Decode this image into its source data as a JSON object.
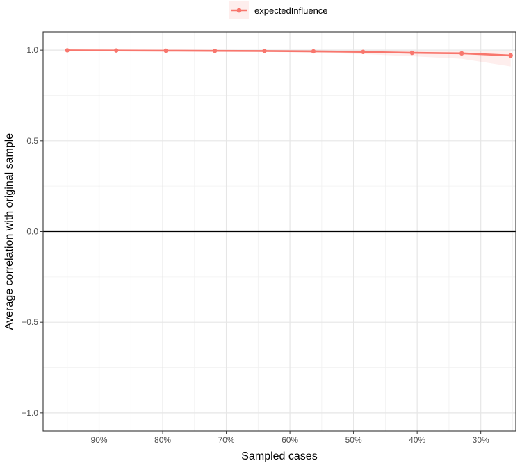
{
  "chart_data": {
    "type": "line",
    "xlabel": "Sampled cases",
    "ylabel": "Average correlation with original sample",
    "x_axis": {
      "reversed": true,
      "domain": [
        0.245,
        0.988
      ],
      "ticks": [
        0.9,
        0.8,
        0.7,
        0.6,
        0.5,
        0.4,
        0.3
      ],
      "tick_labels": [
        "90%",
        "80%",
        "70%",
        "60%",
        "50%",
        "40%",
        "30%"
      ],
      "minor_ticks": [
        0.95,
        0.85,
        0.75,
        0.65,
        0.55,
        0.45,
        0.35,
        0.25
      ]
    },
    "y_axis": {
      "ylim": [
        -1.1,
        1.1
      ],
      "ticks": [
        -1.0,
        -0.5,
        0.0,
        0.5,
        1.0
      ],
      "tick_labels": [
        "−1.0",
        "−0.5",
        "0.0",
        "0.5",
        "1.0"
      ],
      "minor_ticks": [
        -0.75,
        -0.25,
        0.25,
        0.75
      ]
    },
    "grid": true,
    "reference_line": {
      "y": 0,
      "color": "#000000"
    },
    "legend": {
      "position": "top-center"
    },
    "series": [
      {
        "name": "expectedInfluence",
        "color": "#F8766D",
        "ribbon_color": "#F8766D",
        "x": [
          0.95,
          0.873,
          0.795,
          0.718,
          0.64,
          0.563,
          0.485,
          0.408,
          0.33,
          0.253
        ],
        "y": [
          0.999,
          0.998,
          0.997,
          0.996,
          0.995,
          0.993,
          0.99,
          0.985,
          0.982,
          0.97
        ],
        "lower": [
          0.998,
          0.997,
          0.995,
          0.993,
          0.99,
          0.985,
          0.978,
          0.966,
          0.952,
          0.91
        ],
        "upper": [
          1.0,
          1.0,
          1.0,
          1.0,
          0.999,
          0.999,
          0.998,
          0.997,
          0.996,
          0.993
        ]
      }
    ]
  }
}
